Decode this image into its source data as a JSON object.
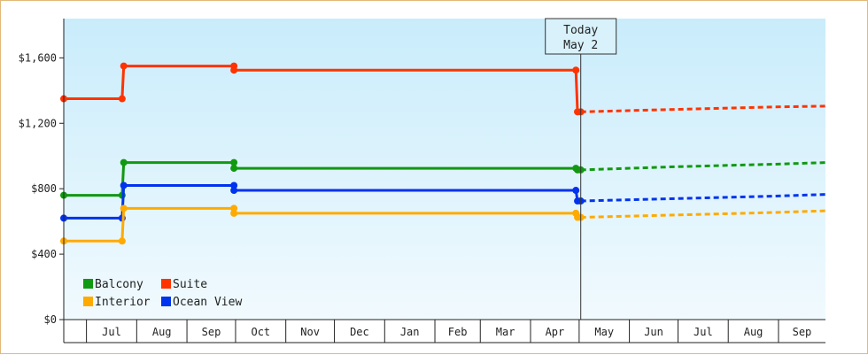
{
  "chart_data": {
    "type": "line",
    "title": "",
    "xlabel": "",
    "ylabel": "",
    "ylim": [
      0,
      1840
    ],
    "y_ticks": [
      "$0",
      "$400",
      "$800",
      "$1,200",
      "$1,600"
    ],
    "y_tick_values": [
      0,
      400,
      800,
      1200,
      1600
    ],
    "x_months": [
      "Jul",
      "Aug",
      "Sep",
      "Oct",
      "Nov",
      "Dec",
      "Jan",
      "Feb",
      "Mar",
      "Apr",
      "May",
      "Jun",
      "Jul",
      "Aug",
      "Sep"
    ],
    "grid": false,
    "legend_position": "bottom-left",
    "today_marker": {
      "line1": "Today",
      "line2": "May 2"
    },
    "colors": {
      "Balcony": "#119911",
      "Suite": "#ff3300",
      "Interior": "#ffaa00",
      "Ocean View": "#0033ee"
    },
    "legend": [
      "Balcony",
      "Suite",
      "Interior",
      "Ocean View"
    ],
    "series": [
      {
        "name": "Suite",
        "points": [
          [
            "Jun 17",
            1350
          ],
          [
            "Jul 23",
            1350
          ],
          [
            "Jul 24",
            1550
          ],
          [
            "Sep 30",
            1550
          ],
          [
            "Sep 30",
            1525
          ],
          [
            "Apr 29",
            1525
          ],
          [
            "Apr 30",
            1270
          ],
          [
            "May 2",
            1270
          ]
        ],
        "forecast": [
          [
            "May 2",
            1270
          ],
          [
            "Jul 1",
            1285
          ],
          [
            "Aug 30",
            1300
          ],
          [
            "Sep 30",
            1305
          ]
        ]
      },
      {
        "name": "Balcony",
        "points": [
          [
            "Jun 17",
            760
          ],
          [
            "Jul 23",
            760
          ],
          [
            "Jul 24",
            960
          ],
          [
            "Sep 30",
            960
          ],
          [
            "Sep 30",
            925
          ],
          [
            "Apr 29",
            925
          ],
          [
            "Apr 30",
            915
          ],
          [
            "May 2",
            915
          ]
        ],
        "forecast": [
          [
            "May 2",
            915
          ],
          [
            "Jul 1",
            935
          ],
          [
            "Aug 30",
            950
          ],
          [
            "Sep 30",
            960
          ]
        ]
      },
      {
        "name": "Ocean View",
        "points": [
          [
            "Jun 17",
            620
          ],
          [
            "Jul 23",
            620
          ],
          [
            "Jul 24",
            820
          ],
          [
            "Sep 30",
            820
          ],
          [
            "Sep 30",
            790
          ],
          [
            "Apr 29",
            790
          ],
          [
            "Apr 30",
            725
          ],
          [
            "May 2",
            725
          ]
        ],
        "forecast": [
          [
            "May 2",
            725
          ],
          [
            "Jul 1",
            740
          ],
          [
            "Aug 30",
            755
          ],
          [
            "Sep 30",
            765
          ]
        ]
      },
      {
        "name": "Interior",
        "points": [
          [
            "Jun 17",
            480
          ],
          [
            "Jul 23",
            480
          ],
          [
            "Jul 24",
            680
          ],
          [
            "Sep 30",
            680
          ],
          [
            "Sep 30",
            650
          ],
          [
            "Apr 29",
            650
          ],
          [
            "Apr 30",
            625
          ],
          [
            "May 2",
            625
          ]
        ],
        "forecast": [
          [
            "May 2",
            625
          ],
          [
            "Jul 1",
            640
          ],
          [
            "Aug 30",
            655
          ],
          [
            "Sep 30",
            665
          ]
        ]
      }
    ]
  }
}
